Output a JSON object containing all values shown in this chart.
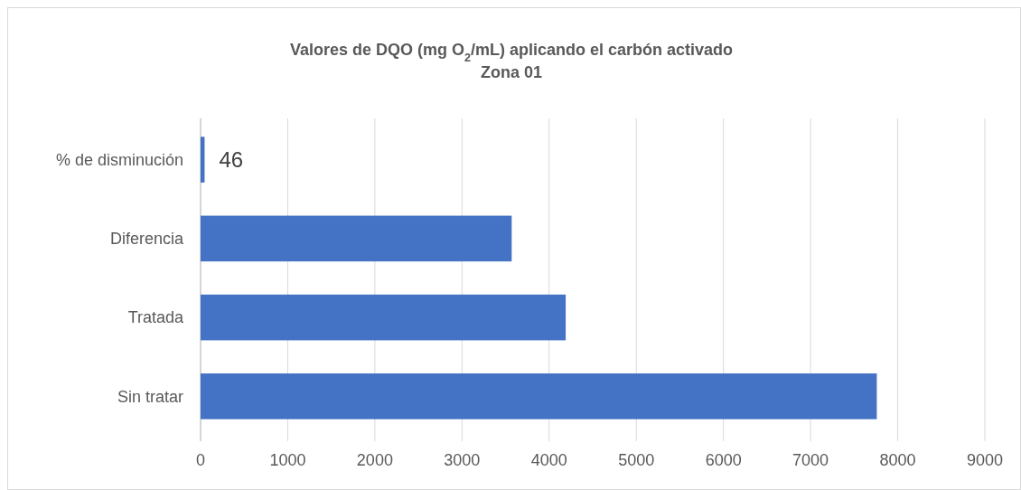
{
  "chart_data": {
    "type": "bar",
    "orientation": "horizontal",
    "title": "Valores de DQO (mg O$_{2}$/mL) aplicando el carbón activado",
    "subtitle": "Zona 01",
    "categories": [
      "% de disminución",
      "Diferencia",
      "Tratada",
      "Sin tratar"
    ],
    "values": [
      46,
      3570,
      4190,
      7760
    ],
    "value_labels": [
      "46",
      null,
      null,
      null
    ],
    "color": "#4472c4",
    "xlim": [
      0,
      9000
    ],
    "xticks": [
      0,
      1000,
      2000,
      3000,
      4000,
      5000,
      6000,
      7000,
      8000,
      9000
    ],
    "grid": "x"
  }
}
